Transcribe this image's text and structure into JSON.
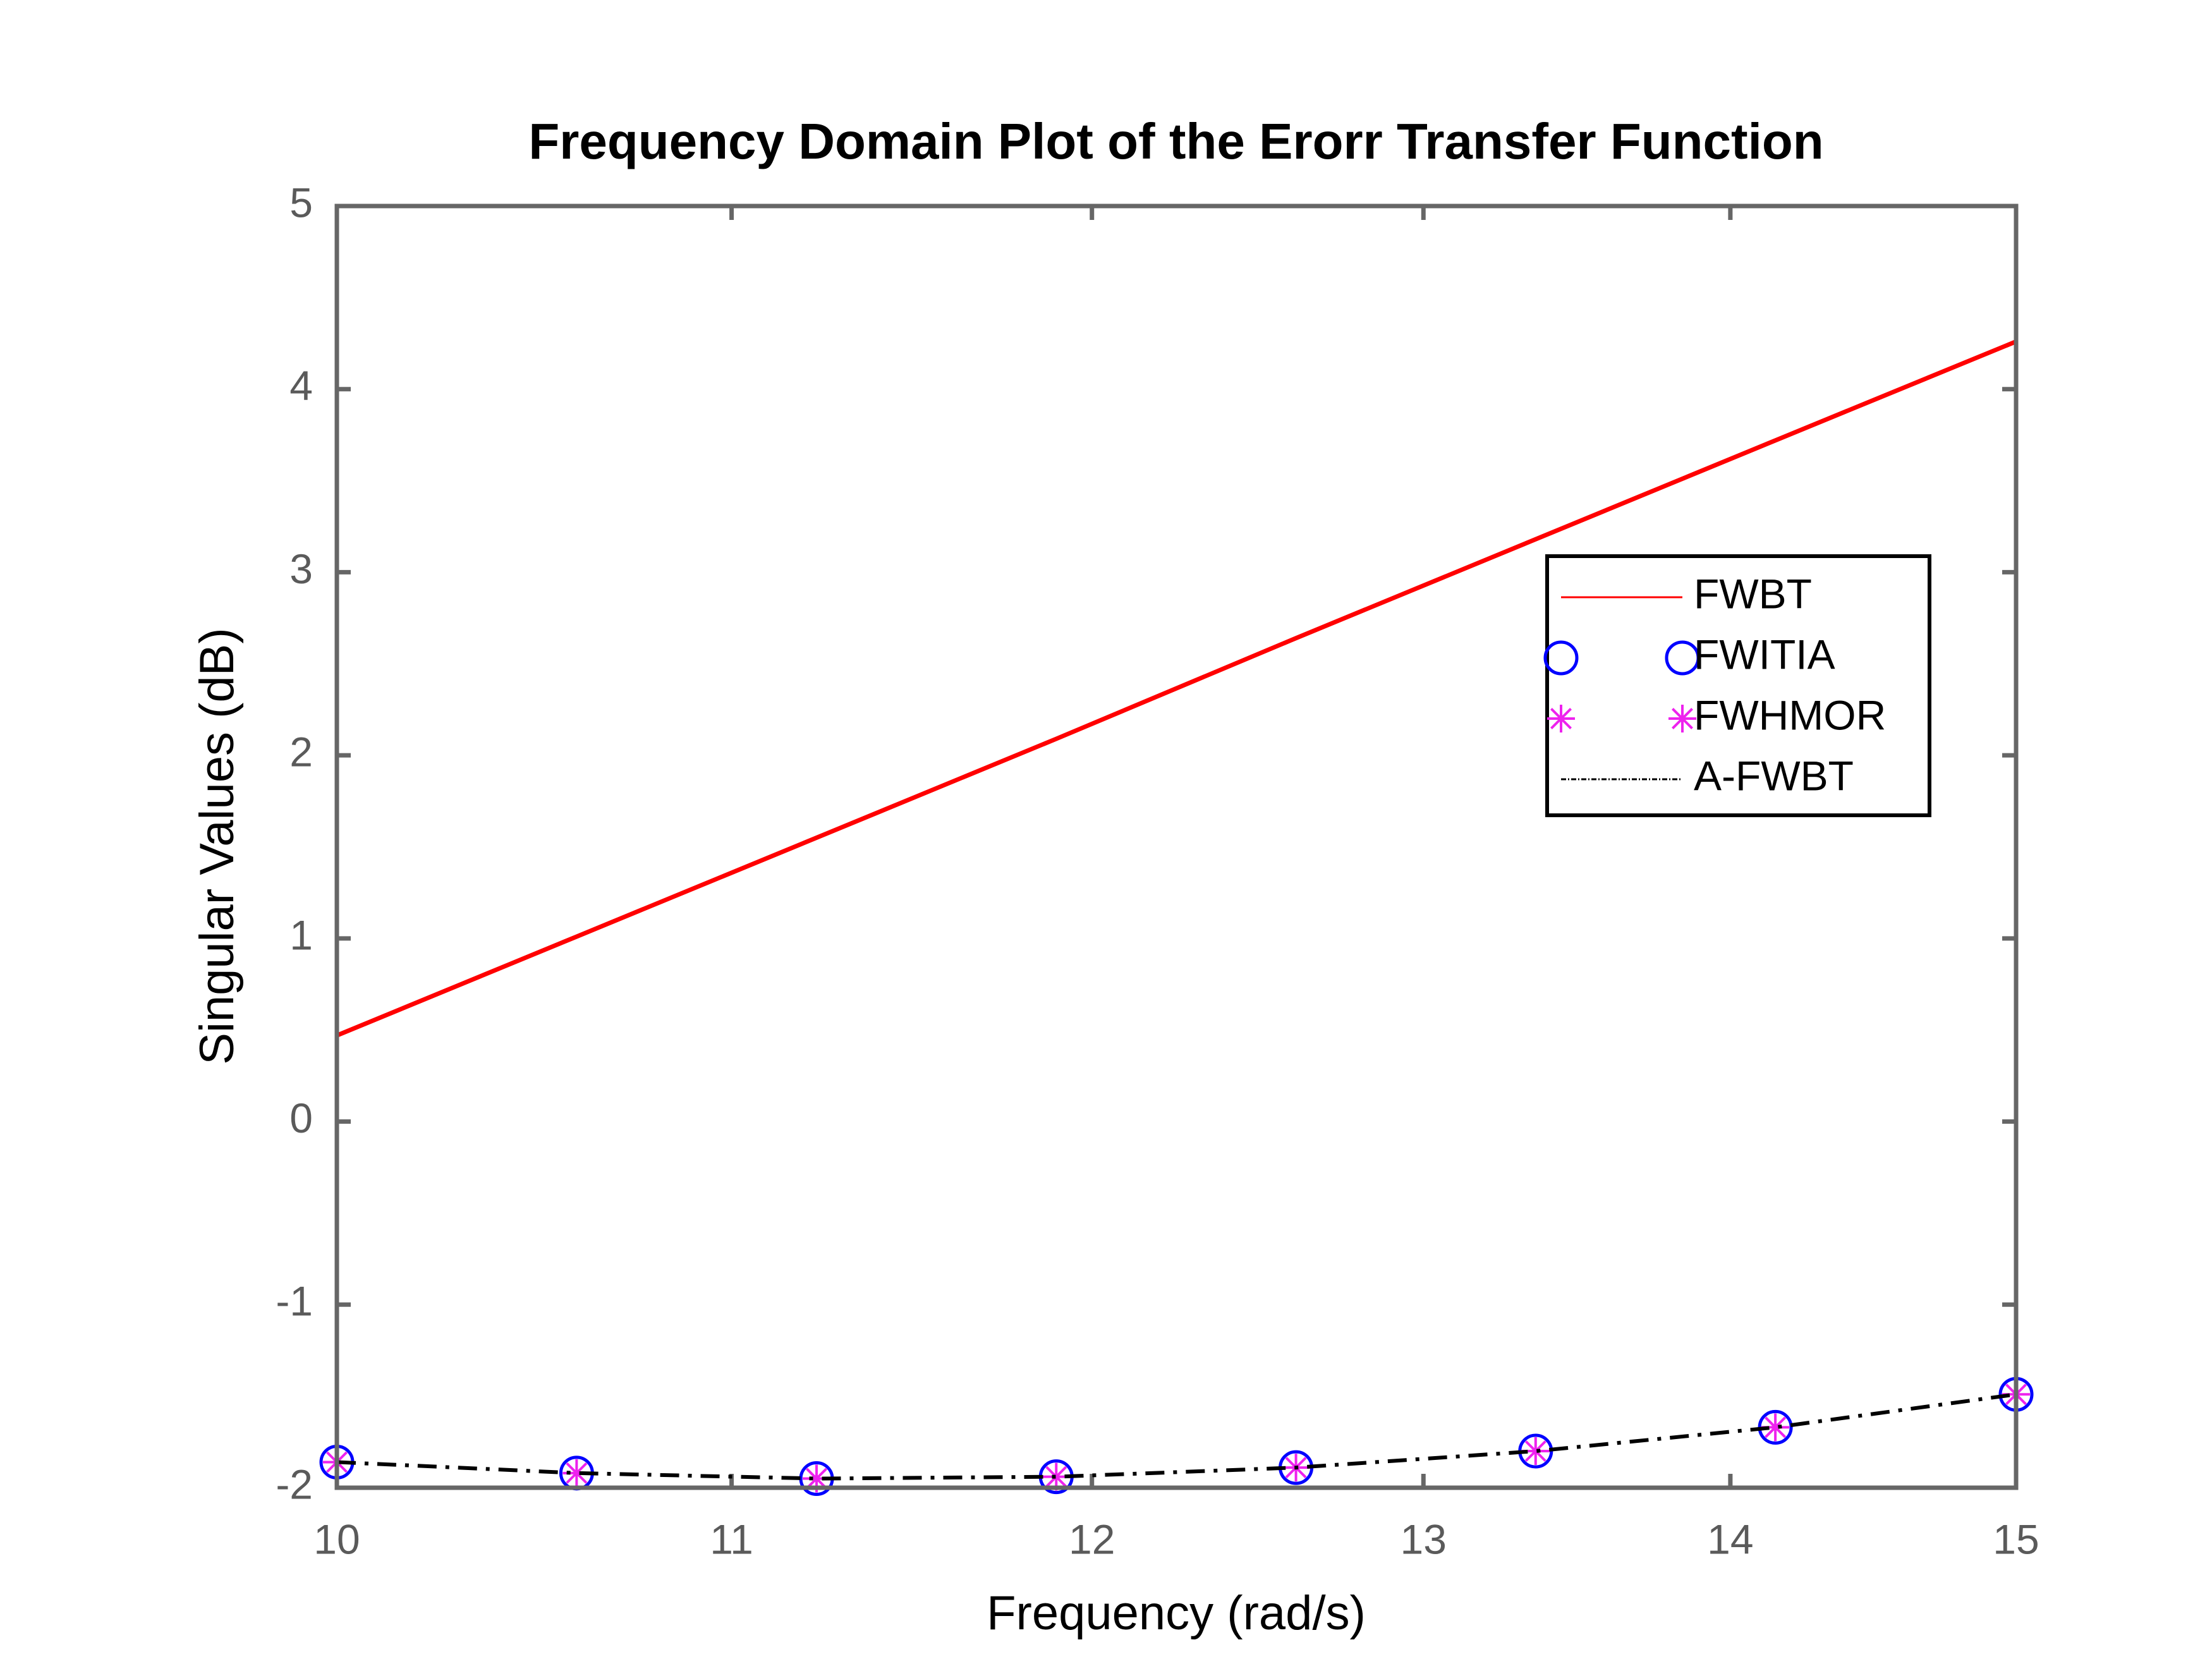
{
  "chart_data": {
    "type": "line",
    "title": "Frequency Domain Plot of the Erorr Transfer Function",
    "x_label": "Frequency (rad/s)",
    "y_label": "Singular Values (dB)",
    "x": [
      10,
      10.596,
      11.228,
      11.897,
      12.606,
      13.357,
      14.153,
      15
    ],
    "series": [
      {
        "name": "FWBT",
        "color": "#ff0000",
        "line": "solid",
        "marker": "none",
        "values": [
          0.47,
          1.01,
          1.55,
          2.09,
          2.64,
          3.18,
          3.72,
          4.26
        ]
      },
      {
        "name": "FWITIA",
        "color": "#0000ff",
        "line": "none",
        "marker": "circle",
        "values": [
          -1.86,
          -1.92,
          -1.95,
          -1.94,
          -1.89,
          -1.8,
          -1.67,
          -1.49
        ]
      },
      {
        "name": "FWHMOR",
        "color": "#ee22ee",
        "line": "none",
        "marker": "asterisk",
        "values": [
          -1.86,
          -1.92,
          -1.95,
          -1.94,
          -1.89,
          -1.8,
          -1.67,
          -1.49
        ]
      },
      {
        "name": "A-FWBT",
        "color": "#000000",
        "line": "dashdot",
        "marker": "none",
        "values": [
          -1.86,
          -1.92,
          -1.95,
          -1.94,
          -1.89,
          -1.8,
          -1.67,
          -1.49
        ]
      }
    ],
    "xscale": "log",
    "xlim": [
      10,
      15
    ],
    "xticks": [
      10,
      11,
      12,
      13,
      14,
      15
    ],
    "ylim": [
      -2,
      5
    ],
    "yticks": [
      -2,
      -1,
      0,
      1,
      2,
      3,
      4,
      5
    ],
    "grid": false,
    "legend": "northeast"
  }
}
